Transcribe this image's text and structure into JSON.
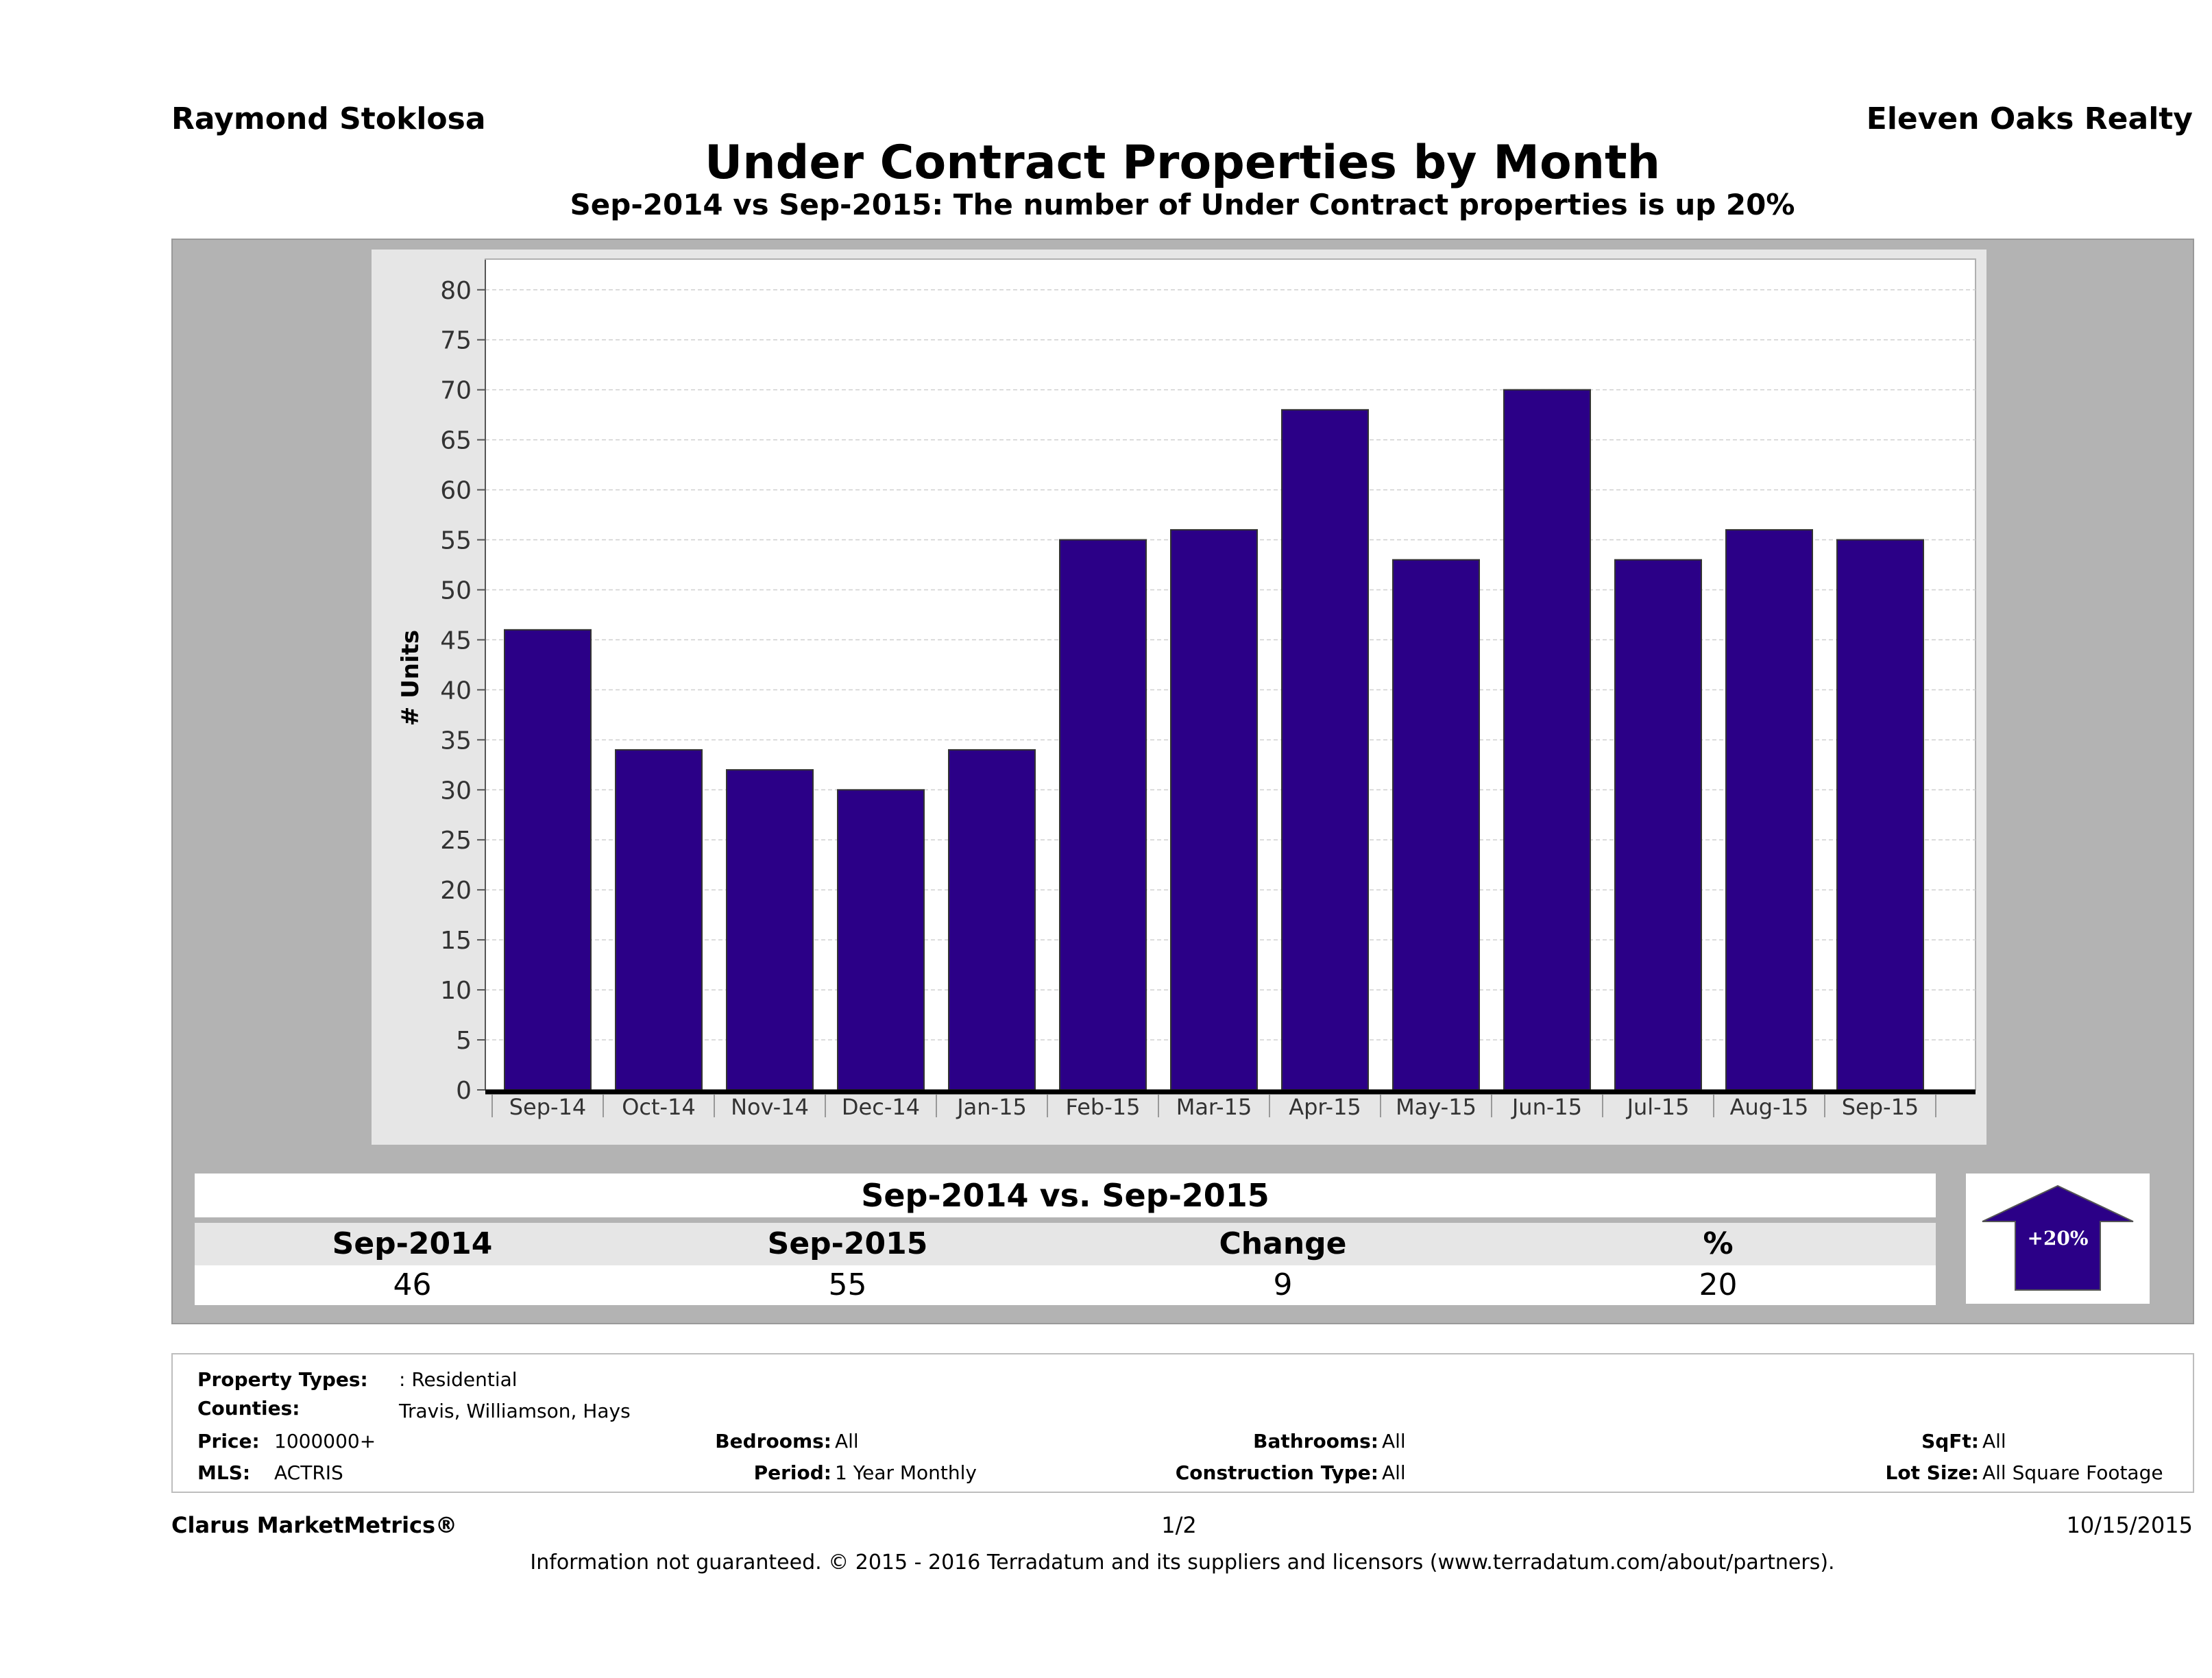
{
  "header": {
    "agent": "Raymond Stoklosa",
    "company": "Eleven Oaks Realty",
    "title": "Under Contract Properties by Month",
    "subtitle": "Sep-2014 vs Sep-2015: The number of Under Contract  properties is up 20%"
  },
  "chart_data": {
    "type": "bar",
    "categories": [
      "Sep-14",
      "Oct-14",
      "Nov-14",
      "Dec-14",
      "Jan-15",
      "Feb-15",
      "Mar-15",
      "Apr-15",
      "May-15",
      "Jun-15",
      "Jul-15",
      "Aug-15",
      "Sep-15"
    ],
    "values": [
      46,
      34,
      32,
      30,
      34,
      55,
      56,
      68,
      53,
      70,
      53,
      56,
      55
    ],
    "ylabel": "# Units",
    "ylim": [
      0,
      83
    ],
    "yticks": [
      0,
      5,
      10,
      15,
      20,
      25,
      30,
      35,
      40,
      45,
      50,
      55,
      60,
      65,
      70,
      75,
      80
    ],
    "grid": true,
    "bar_color": "#2b0087"
  },
  "comparison": {
    "heading": "Sep-2014 vs. Sep-2015",
    "labels": [
      "Sep-2014",
      "Sep-2015",
      "Change",
      "%"
    ],
    "values": [
      "46",
      "55",
      "9",
      "20"
    ],
    "badge": "+20%",
    "arrow_color": "#2b0087"
  },
  "criteria": {
    "property_types_label": "Property Types:",
    "property_types": ": Residential",
    "counties_label": "Counties:",
    "counties": "Travis, Williamson, Hays",
    "price_label": "Price:",
    "price": "1000000+",
    "mls_label": "MLS:",
    "mls": "ACTRIS",
    "bedrooms_label": "Bedrooms:",
    "bedrooms": "All",
    "period_label": "Period:",
    "period": "1 Year Monthly",
    "bathrooms_label": "Bathrooms:",
    "bathrooms": "All",
    "construction_label": "Construction Type:",
    "construction": "All",
    "sqft_label": "SqFt:",
    "sqft": "All",
    "lot_label": "Lot Size:",
    "lot": "All Square Footage"
  },
  "footer": {
    "brand": "Clarus MarketMetrics®",
    "page": "1/2",
    "date": "10/15/2015",
    "disclaimer": "Information not guaranteed. © 2015 - 2016 Terradatum and its suppliers and licensors (www.terradatum.com/about/partners)."
  }
}
